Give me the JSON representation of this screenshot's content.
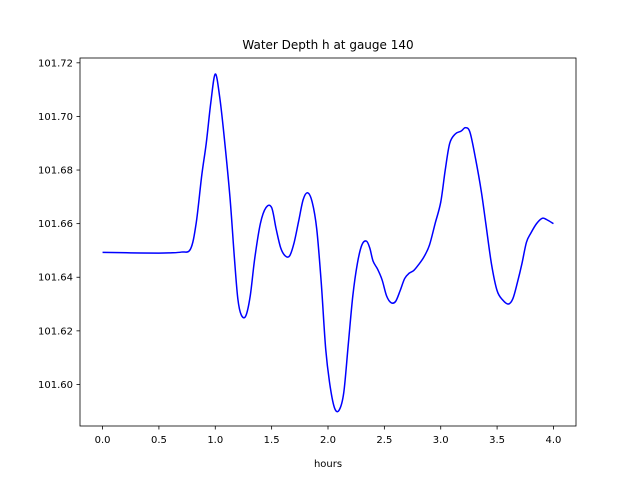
{
  "chart_data": {
    "type": "line",
    "title": "Water Depth h at gauge 140",
    "xlabel": "hours",
    "ylabel": "",
    "xlim": [
      -0.2,
      4.2
    ],
    "ylim": [
      101.5845,
      101.7218
    ],
    "xticks": [
      0.0,
      0.5,
      1.0,
      1.5,
      2.0,
      2.5,
      3.0,
      3.5,
      4.0
    ],
    "xtick_labels": [
      "0.0",
      "0.5",
      "1.0",
      "1.5",
      "2.0",
      "2.5",
      "3.0",
      "3.5",
      "4.0"
    ],
    "yticks": [
      101.6,
      101.62,
      101.64,
      101.66,
      101.68,
      101.7,
      101.72
    ],
    "ytick_labels": [
      "101.60",
      "101.62",
      "101.64",
      "101.66",
      "101.68",
      "101.70",
      "101.72"
    ],
    "grid": false,
    "line_color": "#0000ff",
    "series": [
      {
        "x": [
          0.0,
          0.25,
          0.5,
          0.6,
          0.7,
          0.78,
          0.83,
          0.88,
          0.92,
          0.96,
          1.0,
          1.04,
          1.08,
          1.13,
          1.17,
          1.2,
          1.23,
          1.27,
          1.31,
          1.35,
          1.4,
          1.45,
          1.5,
          1.54,
          1.58,
          1.62,
          1.66,
          1.7,
          1.74,
          1.78,
          1.82,
          1.86,
          1.9,
          1.94,
          1.98,
          2.02,
          2.06,
          2.1,
          2.14,
          2.18,
          2.22,
          2.26,
          2.3,
          2.34,
          2.37,
          2.4,
          2.44,
          2.48,
          2.52,
          2.56,
          2.6,
          2.64,
          2.68,
          2.72,
          2.76,
          2.8,
          2.85,
          2.9,
          2.95,
          3.0,
          3.04,
          3.08,
          3.13,
          3.18,
          3.22,
          3.26,
          3.31,
          3.36,
          3.4,
          3.45,
          3.5,
          3.55,
          3.6,
          3.64,
          3.68,
          3.72,
          3.76,
          3.8,
          3.85,
          3.9,
          3.94,
          4.0
        ],
        "y": [
          101.6493,
          101.6491,
          101.649,
          101.6491,
          101.6494,
          101.6505,
          101.66,
          101.678,
          101.69,
          101.705,
          101.7158,
          101.707,
          101.692,
          101.67,
          101.647,
          101.632,
          101.626,
          101.6255,
          101.633,
          101.647,
          101.66,
          101.666,
          101.666,
          101.658,
          101.651,
          101.648,
          101.648,
          101.653,
          101.661,
          101.669,
          101.6715,
          101.668,
          101.658,
          101.638,
          101.613,
          101.599,
          101.591,
          101.5905,
          101.597,
          101.615,
          101.633,
          101.645,
          101.652,
          101.6535,
          101.651,
          101.646,
          101.643,
          101.639,
          101.633,
          101.6305,
          101.631,
          101.635,
          101.6395,
          101.6415,
          101.6425,
          101.6445,
          101.6475,
          101.652,
          101.66,
          101.668,
          101.68,
          101.69,
          101.6935,
          101.6945,
          101.6958,
          101.694,
          101.684,
          101.672,
          101.66,
          101.645,
          101.635,
          101.6315,
          101.63,
          101.632,
          101.638,
          101.645,
          101.653,
          101.6565,
          101.66,
          101.662,
          101.6615,
          101.66
        ]
      }
    ]
  }
}
